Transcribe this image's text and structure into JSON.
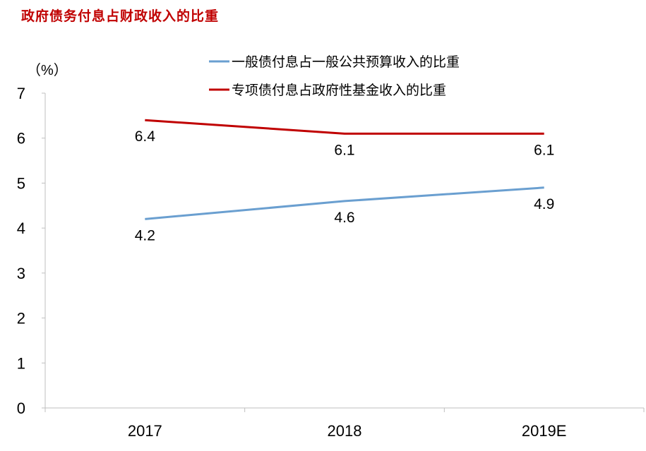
{
  "title": "政府债务付息占财政收入的比重",
  "chart_data": {
    "type": "line",
    "unit_label": "（%）",
    "categories": [
      "2017",
      "2018",
      "2019E"
    ],
    "ylim": [
      0,
      7
    ],
    "yticks": [
      0,
      1,
      2,
      3,
      4,
      5,
      6,
      7
    ],
    "grid": false,
    "legend_position": "top-right",
    "series": [
      {
        "name": "一般债付息占一般公共预算收入的比重",
        "values": [
          4.2,
          4.6,
          4.9
        ],
        "labels": [
          "4.2",
          "4.6",
          "4.9"
        ],
        "color": "#6a9fd0"
      },
      {
        "name": "专项债付息占政府性基金收入的比重",
        "values": [
          6.4,
          6.1,
          6.1
        ],
        "labels": [
          "6.4",
          "6.1",
          "6.1"
        ],
        "color": "#c00000"
      }
    ]
  }
}
